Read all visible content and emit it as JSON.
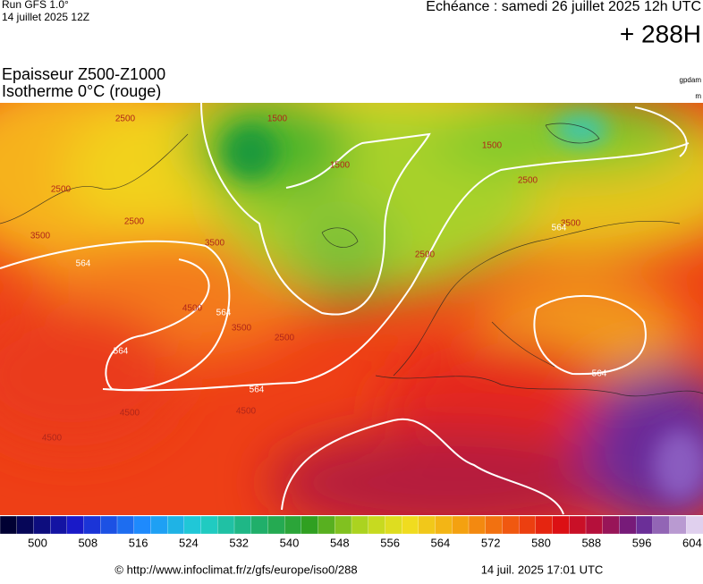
{
  "header": {
    "run": "Run GFS 1.0°",
    "run_date": "14 juillet 2025 12Z",
    "valid": "Echéance : samedi 26 juillet 2025 12h UTC",
    "lead": "+ 288H",
    "title_line1": "Epaisseur Z500-Z1000",
    "title_line2": "Isotherme 0°C (rouge)",
    "unit1": "gpdam",
    "unit2": "m"
  },
  "contour_labels": [
    2500,
    2500,
    2500,
    1500,
    1500,
    1500,
    2500,
    3500,
    3500,
    3500,
    3500,
    2500,
    2500,
    564,
    564,
    564,
    564,
    564,
    564,
    4500,
    4500,
    4500,
    4500
  ],
  "scale": {
    "labels": [
      500,
      508,
      516,
      524,
      532,
      540,
      548,
      556,
      564,
      572,
      580,
      588,
      596,
      604
    ]
  },
  "footer": {
    "url": "© http://www.infoclimat.fr/z/gfs/europe/iso0/288",
    "generated": "14 juil. 2025 17:01 UTC"
  }
}
